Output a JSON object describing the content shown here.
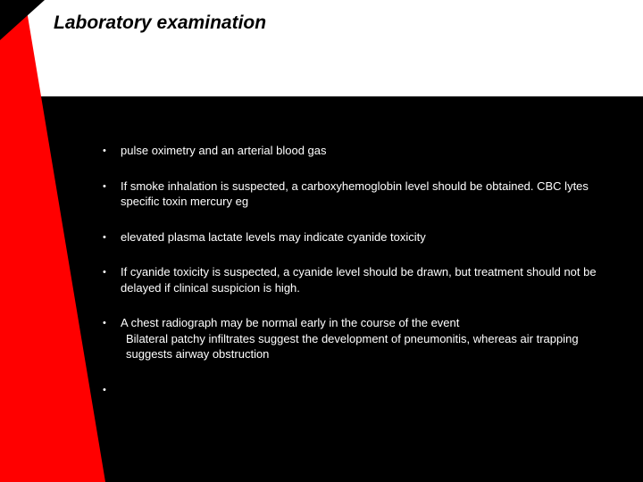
{
  "slide": {
    "title": "Laboratory examination",
    "bullets": [
      {
        "text": "pulse oximetry and an arterial blood gas"
      },
      {
        "text": "If smoke inhalation is suspected, a carboxyhemoglobin level should be obtained. CBC lytes specific toxin mercury eg"
      },
      {
        "text": "elevated plasma lactate levels may indicate cyanide toxicity"
      },
      {
        "text": "If cyanide toxicity is suspected, a cyanide level should be drawn, but treatment should not be delayed if clinical suspicion is high."
      },
      {
        "text": "A chest radiograph may be normal early in the course of the event",
        "sub": " Bilateral patchy infiltrates suggest the development of pneumonitis, whereas air trapping suggests airway obstruction"
      },
      {
        "text": ""
      }
    ]
  },
  "colors": {
    "background": "#000000",
    "header": "#ffffff",
    "accent": "#ff0000",
    "text_light": "#ffffff",
    "text_dark": "#000000"
  }
}
